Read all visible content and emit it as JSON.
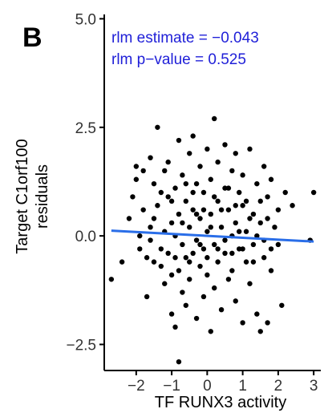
{
  "chart_data": {
    "type": "scatter",
    "panel_label": "B",
    "xlabel": "TF RUNX3  activity",
    "ylabel_lines": [
      "Target C1orf100",
      "residuals"
    ],
    "xlim": [
      -2.9,
      3.2
    ],
    "ylim": [
      -3.1,
      5.1
    ],
    "x_ticks": [
      -2,
      -1,
      0,
      1,
      2,
      3
    ],
    "x_tick_labels": [
      "−2",
      "−1",
      "0",
      "1",
      "2",
      "3"
    ],
    "y_ticks": [
      -2.5,
      0.0,
      2.5,
      5.0
    ],
    "y_tick_labels": [
      "−2.5",
      "0.0",
      "2.5",
      "5.0"
    ],
    "annotations": [
      "rlm estimate = −0.043",
      "rlm p−value = 0.525"
    ],
    "regression_line": {
      "x": [
        -2.7,
        3.0
      ],
      "y": [
        0.12,
        -0.13
      ],
      "color": "#2a6ee8"
    },
    "point_color": "#000000",
    "annotation_color": "#1f1fd8",
    "points": [
      [
        -2.7,
        -1.0
      ],
      [
        -2.4,
        -0.6
      ],
      [
        -2.2,
        0.4
      ],
      [
        -2.1,
        0.9
      ],
      [
        -2.0,
        1.6
      ],
      [
        -2.0,
        1.3
      ],
      [
        -1.9,
        0.0
      ],
      [
        -1.9,
        -0.3
      ],
      [
        -1.8,
        1.5
      ],
      [
        -1.8,
        0.6
      ],
      [
        -1.7,
        -0.5
      ],
      [
        -1.7,
        -1.4
      ],
      [
        -1.6,
        1.8
      ],
      [
        -1.6,
        0.2
      ],
      [
        -1.6,
        -0.1
      ],
      [
        -1.5,
        1.2
      ],
      [
        -1.5,
        -0.6
      ],
      [
        -1.4,
        2.5
      ],
      [
        -1.4,
        0.7
      ],
      [
        -1.3,
        -0.3
      ],
      [
        -1.3,
        -0.7
      ],
      [
        -1.2,
        1.5
      ],
      [
        -1.2,
        0.1
      ],
      [
        -1.2,
        -1.1
      ],
      [
        -1.1,
        1.7
      ],
      [
        -1.1,
        -0.4
      ],
      [
        -1.1,
        0.9
      ],
      [
        -1.0,
        0.3
      ],
      [
        -1.0,
        -0.9
      ],
      [
        -1.0,
        -1.8
      ],
      [
        -0.9,
        1.1
      ],
      [
        -0.9,
        0.0
      ],
      [
        -0.9,
        -2.1
      ],
      [
        -0.8,
        2.2
      ],
      [
        -0.8,
        0.5
      ],
      [
        -0.8,
        -0.8
      ],
      [
        -0.8,
        -2.9
      ],
      [
        -0.7,
        1.4
      ],
      [
        -0.7,
        -0.2
      ],
      [
        -0.7,
        -1.3
      ],
      [
        -0.6,
        0.8
      ],
      [
        -0.6,
        -0.5
      ],
      [
        -0.6,
        -1.6
      ],
      [
        -0.5,
        1.9
      ],
      [
        -0.5,
        0.2
      ],
      [
        -0.5,
        -1.0
      ],
      [
        -0.4,
        2.3
      ],
      [
        -0.4,
        0.6
      ],
      [
        -0.4,
        -0.4
      ],
      [
        -0.3,
        1.2
      ],
      [
        -0.3,
        -0.1
      ],
      [
        -0.3,
        -1.9
      ],
      [
        -0.2,
        1.6
      ],
      [
        -0.2,
        0.4
      ],
      [
        -0.2,
        -0.7
      ],
      [
        -0.1,
        1.0
      ],
      [
        -0.1,
        -0.3
      ],
      [
        -0.1,
        -1.4
      ],
      [
        0.0,
        2.0
      ],
      [
        0.0,
        0.1
      ],
      [
        0.0,
        -0.9
      ],
      [
        0.1,
        1.3
      ],
      [
        0.1,
        0.5
      ],
      [
        0.1,
        -2.2
      ],
      [
        0.2,
        2.7
      ],
      [
        0.2,
        -0.2
      ],
      [
        0.2,
        -1.2
      ],
      [
        0.3,
        0.8
      ],
      [
        0.3,
        -0.6
      ],
      [
        0.3,
        1.7
      ],
      [
        0.4,
        0.2
      ],
      [
        0.4,
        -1.7
      ],
      [
        0.5,
        1.1
      ],
      [
        0.5,
        -0.4
      ],
      [
        0.5,
        2.1
      ],
      [
        0.6,
        0.6
      ],
      [
        0.6,
        -1.0
      ],
      [
        0.7,
        1.5
      ],
      [
        0.7,
        0.0
      ],
      [
        0.7,
        -0.8
      ],
      [
        0.8,
        1.9
      ],
      [
        0.8,
        0.3
      ],
      [
        0.8,
        -1.5
      ],
      [
        0.9,
        1.0
      ],
      [
        0.9,
        -0.3
      ],
      [
        1.0,
        1.4
      ],
      [
        1.0,
        -2.0
      ],
      [
        1.0,
        0.7
      ],
      [
        1.1,
        -0.6
      ],
      [
        1.1,
        0.1
      ],
      [
        1.2,
        2.0
      ],
      [
        1.2,
        -1.1
      ],
      [
        1.3,
        0.5
      ],
      [
        1.3,
        -0.2
      ],
      [
        1.4,
        1.2
      ],
      [
        1.4,
        -1.8
      ],
      [
        1.5,
        0.3
      ],
      [
        1.5,
        -2.2
      ],
      [
        1.6,
        1.6
      ],
      [
        1.6,
        -0.5
      ],
      [
        1.7,
        0.9
      ],
      [
        1.7,
        -2.0
      ],
      [
        1.8,
        1.3
      ],
      [
        1.8,
        -0.8
      ],
      [
        1.9,
        0.2
      ],
      [
        2.0,
        -0.2
      ],
      [
        2.0,
        0.6
      ],
      [
        2.1,
        -1.6
      ],
      [
        2.2,
        1.0
      ],
      [
        2.4,
        0.7
      ],
      [
        2.9,
        -0.1
      ],
      [
        3.0,
        1.0
      ],
      [
        -1.5,
        0.4
      ],
      [
        -1.3,
        1.0
      ],
      [
        -1.0,
        0.8
      ],
      [
        -0.9,
        -0.5
      ],
      [
        -0.7,
        0.3
      ],
      [
        -0.6,
        1.2
      ],
      [
        -0.5,
        -0.6
      ],
      [
        -0.4,
        1.0
      ],
      [
        -0.3,
        0.5
      ],
      [
        -0.2,
        -0.2
      ],
      [
        -0.1,
        0.6
      ],
      [
        0.0,
        -0.5
      ],
      [
        0.1,
        0.2
      ],
      [
        0.2,
        0.9
      ],
      [
        0.3,
        -0.3
      ],
      [
        0.4,
        0.6
      ],
      [
        0.5,
        -0.1
      ],
      [
        0.6,
        1.1
      ],
      [
        0.7,
        -0.4
      ],
      [
        0.8,
        0.7
      ],
      [
        0.9,
        0.1
      ],
      [
        1.0,
        -0.3
      ],
      [
        1.1,
        0.8
      ],
      [
        1.2,
        0.4
      ],
      [
        1.3,
        -0.6
      ],
      [
        1.4,
        0.0
      ],
      [
        1.5,
        0.8
      ],
      [
        1.6,
        -0.1
      ],
      [
        1.7,
        0.4
      ],
      [
        1.8,
        -0.3
      ]
    ]
  }
}
